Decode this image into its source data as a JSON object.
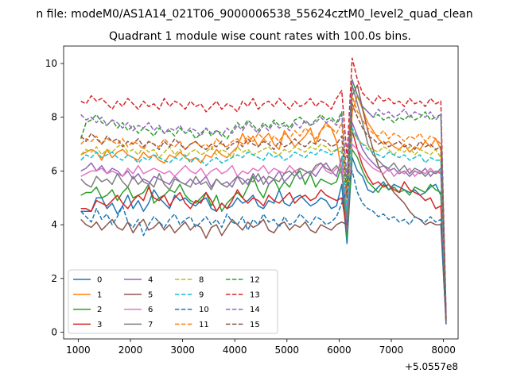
{
  "window": {
    "suptitle": "n file: modeM0/AS1A14_021T06_9000006538_55624cztM0_level2_quad_clean"
  },
  "chart_data": {
    "type": "line",
    "title": "Quadrant 1 module wise count rates with 100.0s bins.",
    "xlabel": "",
    "ylabel": "",
    "x_offset_label": "+5.0557e8",
    "xlim": [
      720,
      8280
    ],
    "ylim": [
      -0.25,
      10.65
    ],
    "xticks": [
      1000,
      2000,
      3000,
      4000,
      5000,
      6000,
      7000,
      8000
    ],
    "yticks": [
      0,
      2,
      4,
      6,
      8,
      10
    ],
    "x_start": 1050,
    "x_step": 100,
    "legend": {
      "placement": "lower-left",
      "columns": 4
    },
    "series": [
      {
        "name": "0",
        "color": "#1f77b4",
        "dash": "solid",
        "values": [
          4.5,
          4.5,
          4.5,
          5.0,
          5.0,
          4.6,
          4.8,
          4.4,
          4.7,
          5.1,
          4.6,
          4.9,
          4.5,
          4.8,
          5.3,
          5.0,
          4.8,
          4.6,
          5.1,
          4.9,
          5.0,
          4.8,
          4.7,
          4.9,
          5.0,
          4.6,
          4.5,
          4.8,
          4.6,
          4.7,
          5.0,
          4.8,
          4.9,
          5.1,
          4.7,
          4.6,
          4.9,
          4.8,
          5.3,
          4.8,
          4.7,
          5.0,
          5.1,
          4.9,
          4.7,
          4.8,
          5.0,
          4.9,
          4.6,
          4.7,
          5.5,
          3.3,
          6.5,
          6.0,
          5.8,
          5.3,
          5.2,
          5.4,
          5.6,
          5.3,
          5.5,
          5.4,
          5.3,
          5.2,
          5.3,
          5.1,
          5.2,
          5.4,
          5.5,
          5.1,
          0.3
        ]
      },
      {
        "name": "1",
        "color": "#ff7f0e",
        "dash": "solid",
        "values": [
          6.6,
          6.7,
          6.8,
          6.7,
          6.4,
          6.8,
          6.5,
          6.7,
          6.8,
          6.6,
          6.5,
          6.4,
          6.7,
          6.5,
          6.6,
          6.4,
          6.3,
          6.6,
          6.5,
          6.7,
          6.5,
          6.4,
          6.5,
          6.3,
          6.6,
          6.5,
          6.8,
          6.6,
          6.5,
          6.7,
          6.9,
          7.4,
          7.0,
          7.3,
          6.9,
          7.2,
          7.4,
          7.0,
          6.8,
          7.5,
          7.2,
          6.9,
          7.1,
          7.3,
          7.6,
          7.0,
          7.5,
          7.8,
          7.6,
          7.1,
          6.0,
          4.0,
          8.2,
          8.8,
          8.3,
          7.8,
          7.5,
          7.2,
          7.0,
          7.1,
          6.9,
          6.8,
          7.0,
          6.7,
          6.9,
          6.8,
          7.1,
          6.9,
          7.2,
          6.8,
          0.5
        ]
      },
      {
        "name": "2",
        "color": "#2ca02c",
        "dash": "solid",
        "values": [
          5.1,
          5.2,
          5.2,
          5.4,
          5.0,
          5.1,
          5.3,
          4.9,
          5.2,
          5.4,
          5.0,
          5.1,
          5.2,
          5.5,
          4.8,
          5.0,
          5.1,
          5.3,
          5.2,
          5.5,
          5.1,
          4.9,
          4.8,
          5.0,
          5.2,
          4.7,
          5.1,
          4.5,
          4.8,
          5.0,
          5.2,
          5.0,
          5.4,
          5.8,
          5.3,
          5.0,
          5.5,
          5.7,
          5.3,
          5.6,
          5.4,
          5.8,
          6.0,
          5.5,
          5.9,
          5.4,
          5.7,
          5.6,
          5.5,
          5.6,
          6.2,
          3.5,
          6.8,
          6.5,
          6.0,
          5.6,
          5.4,
          5.2,
          5.5,
          5.3,
          5.4,
          5.2,
          5.3,
          5.1,
          5.4,
          5.3,
          5.2,
          5.5,
          5.3,
          5.2,
          0.4
        ]
      },
      {
        "name": "3",
        "color": "#d62728",
        "dash": "solid",
        "values": [
          4.6,
          4.6,
          4.5,
          4.9,
          4.8,
          4.7,
          4.9,
          5.1,
          4.8,
          4.6,
          4.9,
          5.1,
          4.9,
          5.4,
          5.0,
          4.9,
          5.1,
          4.7,
          5.0,
          5.2,
          4.8,
          4.6,
          4.9,
          4.8,
          5.2,
          4.9,
          4.5,
          4.8,
          4.6,
          4.9,
          5.3,
          5.0,
          4.8,
          5.0,
          4.9,
          4.7,
          5.1,
          4.9,
          4.8,
          5.0,
          5.2,
          4.8,
          5.0,
          5.1,
          4.9,
          5.0,
          5.3,
          5.1,
          5.0,
          4.9,
          5.0,
          3.8,
          7.5,
          6.8,
          6.2,
          5.8,
          5.5,
          5.6,
          5.4,
          5.5,
          5.3,
          5.2,
          5.6,
          5.3,
          5.2,
          5.1,
          4.9,
          5.0,
          4.6,
          4.7,
          0.5
        ]
      },
      {
        "name": "4",
        "color": "#9467bd",
        "dash": "solid",
        "values": [
          6.0,
          6.1,
          6.3,
          6.0,
          6.2,
          5.9,
          6.1,
          6.0,
          5.8,
          6.0,
          5.7,
          5.9,
          5.6,
          5.5,
          5.8,
          5.7,
          5.6,
          5.5,
          5.8,
          5.6,
          5.5,
          5.7,
          5.5,
          5.6,
          5.8,
          5.4,
          5.7,
          5.5,
          5.6,
          5.4,
          5.8,
          5.7,
          5.5,
          5.9,
          5.6,
          5.8,
          5.5,
          5.7,
          6.0,
          5.6,
          5.8,
          6.0,
          5.7,
          5.9,
          6.0,
          5.8,
          6.1,
          6.3,
          6.0,
          5.8,
          6.5,
          3.8,
          7.8,
          7.3,
          6.8,
          6.5,
          6.3,
          6.1,
          6.2,
          6.0,
          6.1,
          5.9,
          6.0,
          5.8,
          6.0,
          5.9,
          6.1,
          5.8,
          6.0,
          5.9,
          0.4
        ]
      },
      {
        "name": "5",
        "color": "#8c564b",
        "dash": "solid",
        "values": [
          4.2,
          4.0,
          3.9,
          4.1,
          3.8,
          4.0,
          4.2,
          3.9,
          3.8,
          4.1,
          3.7,
          4.0,
          4.2,
          3.8,
          3.9,
          4.1,
          3.8,
          4.0,
          3.7,
          3.9,
          4.1,
          3.8,
          4.0,
          3.9,
          3.5,
          3.9,
          4.0,
          3.6,
          3.9,
          4.2,
          4.0,
          3.8,
          4.1,
          3.9,
          4.0,
          4.2,
          3.8,
          3.7,
          4.0,
          4.1,
          3.8,
          4.0,
          3.9,
          4.1,
          3.8,
          3.7,
          4.0,
          3.9,
          3.8,
          4.0,
          4.1,
          4.0,
          8.8,
          9.2,
          8.3,
          7.5,
          6.8,
          6.2,
          5.8,
          5.5,
          5.2,
          5.0,
          4.8,
          4.5,
          4.3,
          4.2,
          4.0,
          4.1,
          4.0,
          4.0,
          0.3
        ]
      },
      {
        "name": "6",
        "color": "#e377c2",
        "dash": "solid",
        "values": [
          5.8,
          5.9,
          6.0,
          6.0,
          6.1,
          5.9,
          6.0,
          5.9,
          5.8,
          6.1,
          5.9,
          6.2,
          5.9,
          6.0,
          6.1,
          6.0,
          5.9,
          6.0,
          5.8,
          6.0,
          6.2,
          6.0,
          5.9,
          6.1,
          5.8,
          6.0,
          6.1,
          5.9,
          6.0,
          6.2,
          5.8,
          6.0,
          5.9,
          6.1,
          6.0,
          6.2,
          5.9,
          6.1,
          6.0,
          5.9,
          6.2,
          6.0,
          6.1,
          6.0,
          5.9,
          6.1,
          6.3,
          6.0,
          5.9,
          6.1,
          6.2,
          4.5,
          7.0,
          6.8,
          6.5,
          6.3,
          6.1,
          6.0,
          5.9,
          6.1,
          5.8,
          6.0,
          5.9,
          6.1,
          5.8,
          6.0,
          5.9,
          6.1,
          5.9,
          6.0,
          0.5
        ]
      },
      {
        "name": "7",
        "color": "#7f7f7f",
        "dash": "solid",
        "values": [
          5.7,
          5.5,
          5.4,
          5.8,
          5.6,
          5.7,
          5.5,
          5.9,
          5.6,
          5.4,
          5.8,
          5.5,
          5.7,
          5.6,
          5.4,
          5.9,
          5.5,
          5.3,
          5.7,
          5.6,
          5.5,
          5.4,
          5.8,
          5.5,
          5.6,
          5.3,
          5.7,
          5.5,
          5.4,
          5.6,
          5.8,
          5.5,
          5.7,
          5.6,
          5.9,
          5.5,
          5.8,
          5.7,
          5.6,
          5.9,
          6.0,
          5.8,
          6.1,
          6.0,
          5.9,
          6.2,
          6.3,
          6.1,
          6.0,
          6.2,
          5.9,
          4.2,
          9.2,
          8.5,
          7.8,
          7.0,
          6.6,
          6.4,
          6.2,
          6.1,
          6.3,
          6.0,
          6.2,
          5.9,
          6.1,
          6.0,
          5.8,
          6.0,
          5.9,
          6.1,
          0.4
        ]
      },
      {
        "name": "8",
        "color": "#bcbd22",
        "dash": "dashed",
        "values": [
          6.6,
          6.8,
          6.7,
          6.9,
          6.6,
          6.8,
          6.7,
          6.9,
          7.0,
          6.7,
          6.8,
          6.6,
          6.9,
          6.7,
          6.8,
          6.5,
          6.7,
          6.9,
          6.6,
          6.8,
          6.5,
          6.7,
          6.8,
          6.6,
          6.7,
          6.9,
          6.6,
          6.8,
          6.7,
          6.5,
          6.9,
          6.7,
          6.8,
          6.6,
          6.7,
          6.8,
          6.9,
          6.7,
          6.6,
          6.8,
          6.7,
          6.9,
          6.8,
          6.7,
          6.9,
          6.8,
          7.0,
          6.9,
          6.7,
          6.8,
          6.9,
          4.8,
          7.5,
          7.2,
          7.0,
          6.9,
          6.8,
          6.7,
          6.9,
          6.8,
          6.6,
          6.8,
          6.7,
          6.9,
          6.6,
          6.8,
          6.7,
          6.6,
          6.8,
          6.5,
          0.5
        ]
      },
      {
        "name": "9",
        "color": "#17becf",
        "dash": "dashed",
        "values": [
          6.4,
          6.6,
          6.5,
          6.7,
          6.5,
          6.6,
          6.7,
          6.5,
          6.4,
          6.6,
          6.5,
          6.3,
          6.5,
          6.4,
          6.6,
          6.5,
          6.4,
          6.3,
          6.5,
          6.4,
          6.6,
          6.3,
          6.5,
          6.4,
          6.2,
          6.4,
          6.5,
          6.3,
          6.4,
          6.5,
          6.6,
          6.5,
          6.7,
          6.6,
          6.5,
          6.4,
          6.7,
          6.5,
          6.6,
          6.4,
          6.5,
          6.7,
          6.6,
          6.5,
          6.7,
          6.6,
          6.8,
          6.7,
          6.6,
          6.8,
          6.7,
          4.5,
          7.6,
          7.2,
          7.0,
          6.8,
          6.7,
          6.6,
          6.5,
          6.7,
          6.6,
          6.5,
          6.6,
          6.4,
          6.5,
          6.6,
          6.3,
          6.5,
          6.4,
          6.4,
          0.5
        ]
      },
      {
        "name": "10",
        "color": "#1f77b4",
        "dash": "dashed",
        "values": [
          4.5,
          4.3,
          4.1,
          4.6,
          4.2,
          4.4,
          4.0,
          4.3,
          4.7,
          4.1,
          3.9,
          4.2,
          3.6,
          4.0,
          4.3,
          4.1,
          3.9,
          4.2,
          4.4,
          4.0,
          4.2,
          4.3,
          3.9,
          4.1,
          4.3,
          4.0,
          4.2,
          3.9,
          4.4,
          4.1,
          4.0,
          4.3,
          3.8,
          4.2,
          4.0,
          4.4,
          4.1,
          4.2,
          3.9,
          4.3,
          4.0,
          4.1,
          4.4,
          4.2,
          4.0,
          4.3,
          4.2,
          4.0,
          4.1,
          4.3,
          4.8,
          5.3,
          6.0,
          5.2,
          4.8,
          4.6,
          4.5,
          4.3,
          4.4,
          4.2,
          4.3,
          4.1,
          4.2,
          4.0,
          4.3,
          4.2,
          4.1,
          4.3,
          4.1,
          4.2,
          0.3
        ]
      },
      {
        "name": "11",
        "color": "#ff7f0e",
        "dash": "dashed",
        "values": [
          7.0,
          7.2,
          7.1,
          7.3,
          7.0,
          7.2,
          7.1,
          7.0,
          7.2,
          6.9,
          7.1,
          7.0,
          6.8,
          7.1,
          7.0,
          6.9,
          7.2,
          7.0,
          6.9,
          7.1,
          6.8,
          7.0,
          7.1,
          6.9,
          7.0,
          6.8,
          7.2,
          7.0,
          6.9,
          7.1,
          7.2,
          7.0,
          7.3,
          7.1,
          7.4,
          7.2,
          7.0,
          7.3,
          7.1,
          7.4,
          7.2,
          7.5,
          7.3,
          7.6,
          7.4,
          7.2,
          7.5,
          7.7,
          7.6,
          7.4,
          7.8,
          5.2,
          8.8,
          8.2,
          7.9,
          7.6,
          7.4,
          7.3,
          7.5,
          7.2,
          7.4,
          7.3,
          7.1,
          7.3,
          7.2,
          7.4,
          7.1,
          7.3,
          7.2,
          7.0,
          0.5
        ]
      },
      {
        "name": "12",
        "color": "#2ca02c",
        "dash": "dashed",
        "values": [
          7.2,
          7.8,
          7.9,
          8.1,
          7.8,
          7.7,
          7.9,
          7.6,
          7.8,
          7.5,
          7.7,
          7.4,
          7.6,
          7.5,
          7.3,
          7.6,
          7.4,
          7.5,
          7.3,
          7.6,
          7.4,
          7.5,
          7.2,
          7.4,
          7.6,
          7.3,
          7.5,
          7.4,
          7.2,
          7.5,
          7.8,
          7.6,
          7.9,
          7.7,
          7.5,
          7.8,
          7.6,
          7.9,
          7.7,
          7.8,
          7.6,
          7.9,
          8.0,
          7.8,
          7.7,
          7.9,
          8.1,
          7.9,
          8.0,
          7.8,
          8.2,
          5.5,
          9.4,
          8.8,
          8.4,
          8.2,
          8.0,
          8.1,
          7.9,
          8.0,
          7.8,
          8.0,
          7.9,
          8.1,
          7.9,
          8.0,
          8.2,
          7.9,
          8.0,
          8.1,
          0.6
        ]
      },
      {
        "name": "13",
        "color": "#d62728",
        "dash": "dashed",
        "values": [
          8.6,
          8.5,
          8.8,
          8.6,
          8.7,
          8.5,
          8.3,
          8.6,
          8.4,
          8.7,
          8.5,
          8.3,
          8.6,
          8.4,
          8.5,
          8.3,
          8.7,
          8.4,
          8.6,
          8.5,
          8.3,
          8.6,
          8.4,
          8.5,
          8.2,
          8.4,
          8.6,
          8.3,
          8.5,
          8.4,
          8.2,
          8.6,
          8.4,
          8.7,
          8.3,
          8.5,
          8.6,
          8.4,
          8.7,
          8.5,
          8.3,
          8.6,
          8.4,
          8.5,
          8.7,
          8.4,
          8.6,
          8.5,
          8.3,
          8.7,
          9.0,
          6.5,
          10.2,
          9.4,
          8.9,
          8.7,
          8.5,
          8.8,
          8.6,
          8.7,
          8.5,
          8.6,
          8.4,
          8.7,
          8.5,
          8.6,
          8.4,
          8.7,
          8.5,
          8.6,
          0.7
        ]
      },
      {
        "name": "14",
        "color": "#9467bd",
        "dash": "dashed",
        "values": [
          8.1,
          7.9,
          8.0,
          7.8,
          8.0,
          7.7,
          7.9,
          7.8,
          7.6,
          7.8,
          7.5,
          7.7,
          7.6,
          7.8,
          7.5,
          7.7,
          7.4,
          7.6,
          7.5,
          7.7,
          7.4,
          7.6,
          7.5,
          7.3,
          7.6,
          7.4,
          7.5,
          7.3,
          7.6,
          7.4,
          7.7,
          7.5,
          7.8,
          7.6,
          7.4,
          7.7,
          7.5,
          7.8,
          7.6,
          7.7,
          7.5,
          7.8,
          7.6,
          7.9,
          7.7,
          7.8,
          8.0,
          7.8,
          7.9,
          7.7,
          8.1,
          5.8,
          9.4,
          8.8,
          8.4,
          8.2,
          8.0,
          8.3,
          8.1,
          8.2,
          8.0,
          8.1,
          8.3,
          8.0,
          8.2,
          8.1,
          8.0,
          8.2,
          7.9,
          8.1,
          0.6
        ]
      },
      {
        "name": "15",
        "color": "#8c564b",
        "dash": "dashed",
        "values": [
          7.3,
          7.1,
          7.4,
          7.2,
          7.0,
          7.3,
          7.1,
          7.2,
          6.9,
          7.1,
          7.0,
          7.2,
          6.9,
          7.1,
          7.0,
          6.8,
          7.1,
          6.9,
          7.2,
          7.0,
          6.8,
          7.0,
          7.1,
          6.9,
          6.8,
          7.0,
          6.9,
          7.1,
          6.8,
          7.0,
          7.1,
          6.9,
          7.2,
          7.0,
          6.9,
          7.1,
          7.0,
          6.8,
          7.1,
          6.9,
          7.0,
          7.2,
          7.0,
          6.9,
          7.1,
          7.0,
          7.2,
          7.1,
          6.9,
          7.0,
          7.3,
          5.0,
          8.5,
          8.0,
          7.6,
          7.3,
          7.2,
          7.0,
          7.1,
          6.9,
          7.0,
          7.1,
          6.9,
          7.0,
          6.8,
          7.1,
          6.9,
          7.0,
          6.8,
          6.9,
          0.5
        ]
      }
    ]
  }
}
